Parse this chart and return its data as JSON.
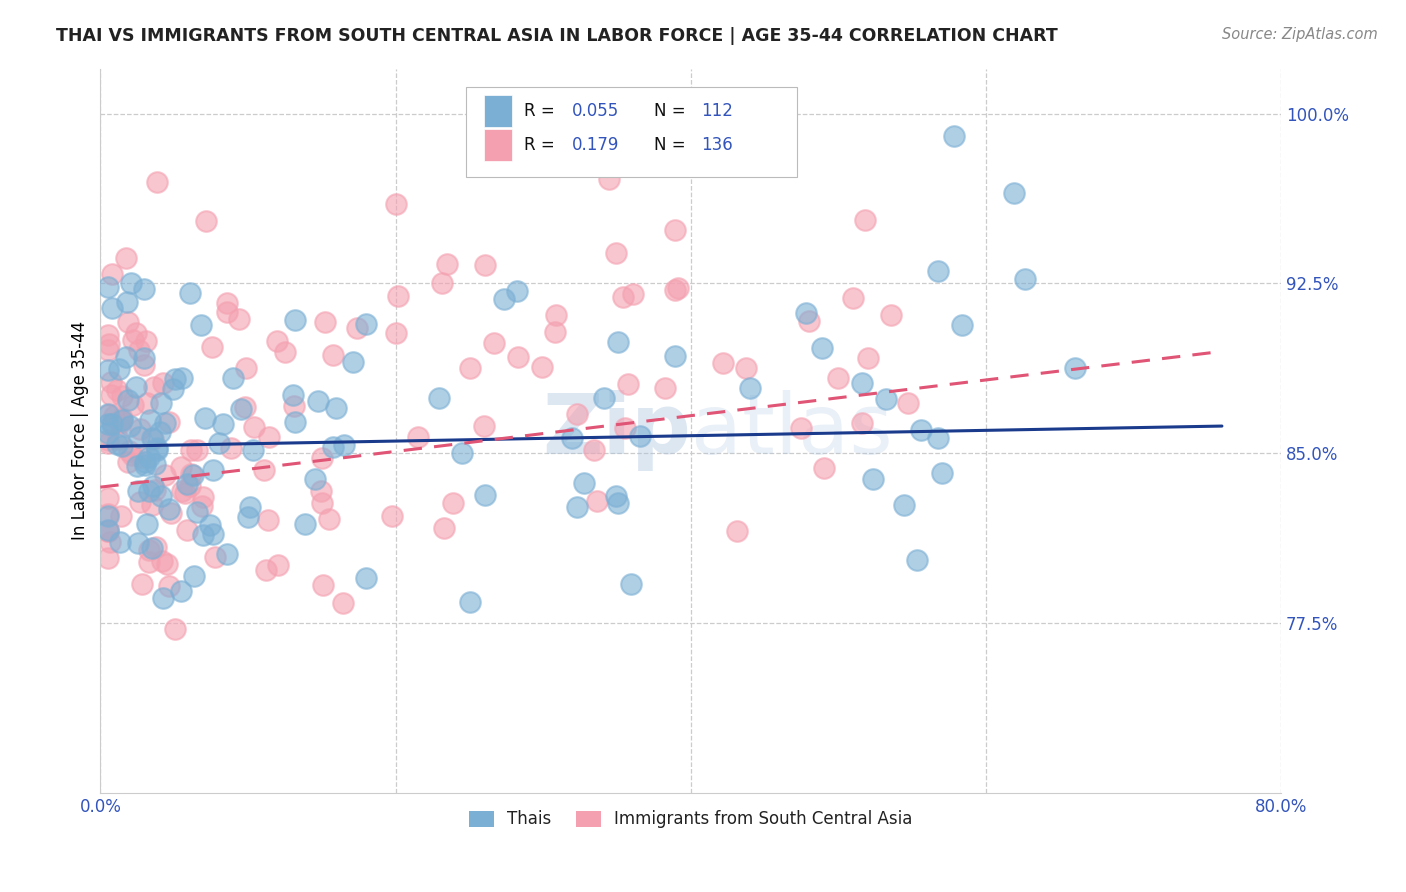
{
  "title": "THAI VS IMMIGRANTS FROM SOUTH CENTRAL ASIA IN LABOR FORCE | AGE 35-44 CORRELATION CHART",
  "source": "Source: ZipAtlas.com",
  "ylabel": "In Labor Force | Age 35-44",
  "xlim": [
    0.0,
    0.8
  ],
  "ylim": [
    0.7,
    1.02
  ],
  "ytick_positions": [
    0.775,
    0.85,
    0.925,
    1.0
  ],
  "yticklabels": [
    "77.5%",
    "85.0%",
    "92.5%",
    "100.0%"
  ],
  "blue_R": 0.055,
  "blue_N": 112,
  "pink_R": 0.179,
  "pink_N": 136,
  "blue_color": "#7bafd4",
  "pink_color": "#f4a0b0",
  "blue_line_color": "#1a3a8c",
  "pink_line_color": "#e05575",
  "legend_label_blue": "Thais",
  "legend_label_pink": "Immigrants from South Central Asia"
}
